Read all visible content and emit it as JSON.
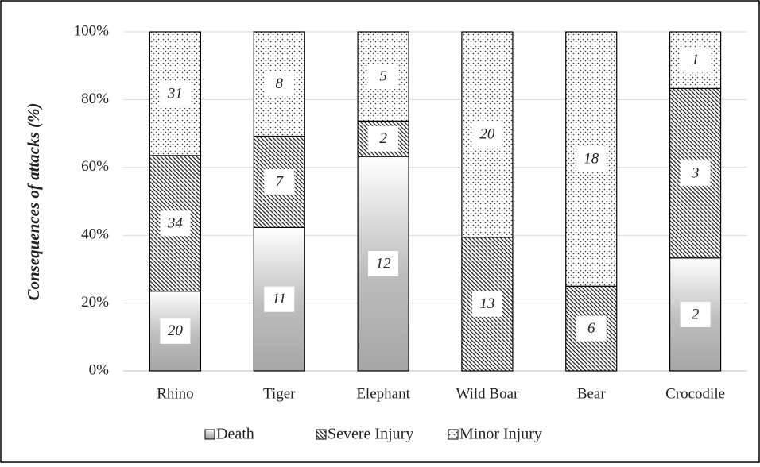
{
  "chart_data": {
    "type": "stacked_bar_100",
    "y_label": "Consequences of attacks (%)",
    "categories": [
      "Rhino",
      "Tiger",
      "Elephant",
      "Wild Boar",
      "Bear",
      "Crocodile"
    ],
    "series": [
      {
        "name": "Death",
        "color": "#a6a6a6",
        "values": [
          23.5,
          42.3,
          63.2,
          0,
          0,
          33.3
        ],
        "counts": [
          20,
          11,
          12,
          null,
          null,
          2
        ]
      },
      {
        "name": "Severe Injury",
        "color": "#222222",
        "values": [
          40.0,
          26.9,
          10.5,
          39.4,
          25.0,
          50.0
        ],
        "counts": [
          34,
          7,
          2,
          13,
          6,
          3
        ]
      },
      {
        "name": "Minor Injury",
        "color": "#333333",
        "values": [
          36.5,
          30.8,
          26.3,
          60.6,
          75.0,
          16.7
        ],
        "counts": [
          31,
          8,
          5,
          20,
          18,
          1
        ]
      }
    ],
    "ylim": [
      0,
      100
    ],
    "yticks": [
      {
        "value": 0,
        "label": "0%"
      },
      {
        "value": 20,
        "label": "20%"
      },
      {
        "value": 40,
        "label": "40%"
      },
      {
        "value": 60,
        "label": "60%"
      },
      {
        "value": 80,
        "label": "80%"
      },
      {
        "value": 100,
        "label": "100%"
      }
    ],
    "grid": true,
    "legend": "bottom"
  }
}
